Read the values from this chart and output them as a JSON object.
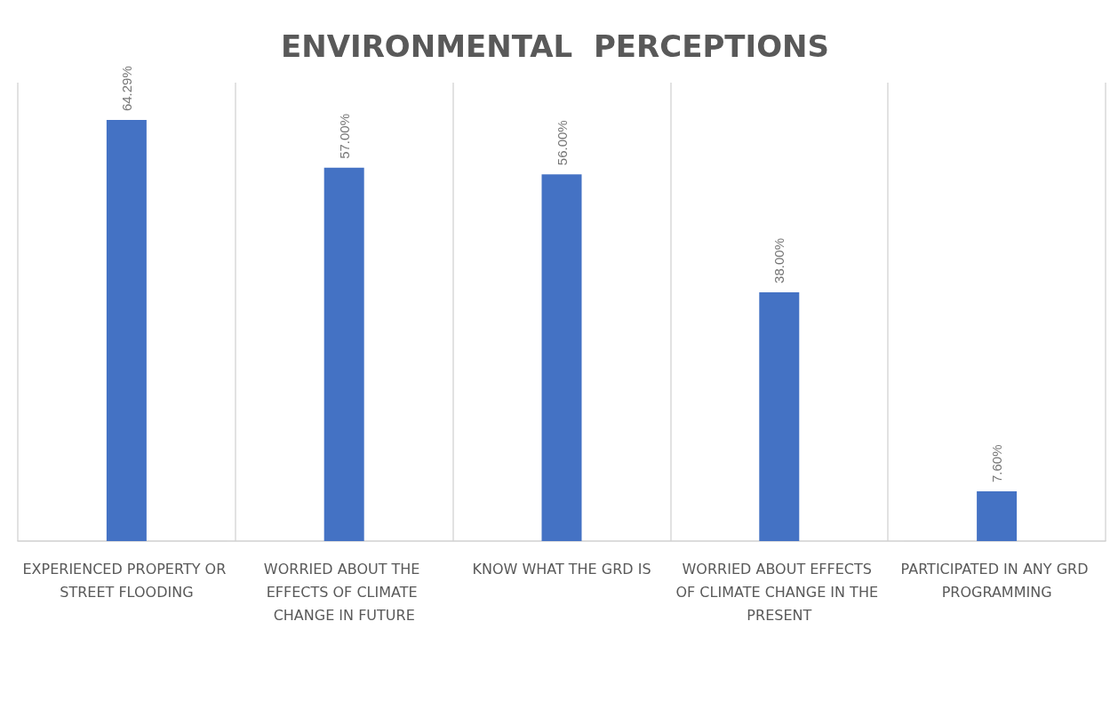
{
  "chart_data": {
    "type": "bar",
    "title": "ENVIRONMENTAL  PERCEPTIONS",
    "categories": [
      "EXPERIENCED PROPERTY OR STREET FLOODING",
      "WORRIED ABOUT THE EFFECTS OF CLIMATE CHANGE IN FUTURE",
      "KNOW WHAT THE GRD IS",
      "WORRIED ABOUT EFFECTS OF CLIMATE CHANGE IN THE PRESENT",
      "PARTICIPATED IN ANY GRD PROGRAMMING"
    ],
    "values": [
      64.29,
      57.0,
      56.0,
      38.0,
      7.6
    ],
    "value_labels": [
      "64.29%",
      "57.00%",
      "56.00%",
      "38.00%",
      "7.60%"
    ],
    "color": "#4472c4",
    "grid": "x"
  }
}
